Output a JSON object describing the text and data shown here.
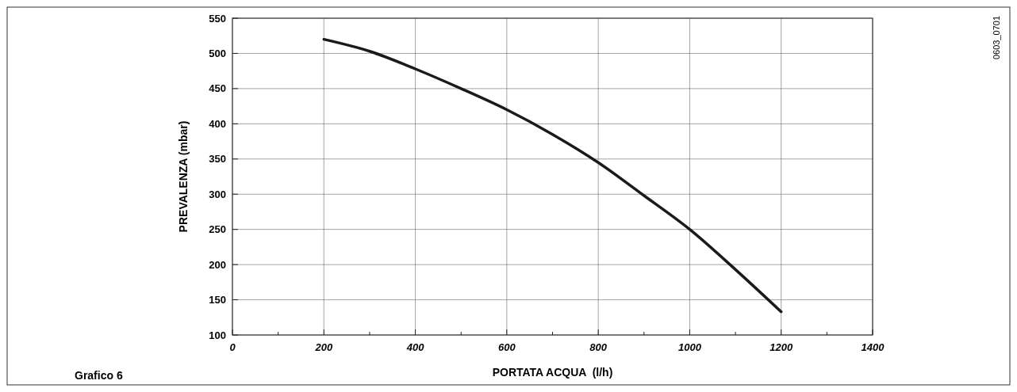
{
  "chart_data": {
    "type": "line",
    "xlabel": "PORTATA ACQUA  (l/h)",
    "ylabel": "PREVALENZA (mbar)",
    "annotations": [
      "Grafico 6",
      "0603_0701"
    ],
    "series": [
      {
        "color": "#1a1a1a",
        "x": [
          200,
          300,
          400,
          500,
          600,
          700,
          800,
          900,
          1000,
          1100,
          1200
        ],
        "values": [
          520,
          503,
          478,
          450,
          420,
          385,
          345,
          298,
          250,
          193,
          133
        ]
      }
    ],
    "xlim": [
      0,
      1400
    ],
    "xticks": [
      0,
      {
        "value": 100,
        "label": null
      },
      200,
      {
        "value": 300,
        "label": null
      },
      400,
      {
        "value": 500,
        "label": null
      },
      600,
      {
        "value": 700,
        "label": null
      },
      800,
      {
        "value": 900,
        "label": null
      },
      1000,
      {
        "value": 1100,
        "label": null
      },
      1200,
      {
        "value": 1300,
        "label": null
      },
      1400
    ],
    "ylim": [
      100,
      550
    ],
    "yticks": [
      100,
      150,
      200,
      250,
      300,
      350,
      400,
      450,
      500,
      550
    ],
    "grid": true,
    "marker": "none",
    "line_style": "solid"
  }
}
